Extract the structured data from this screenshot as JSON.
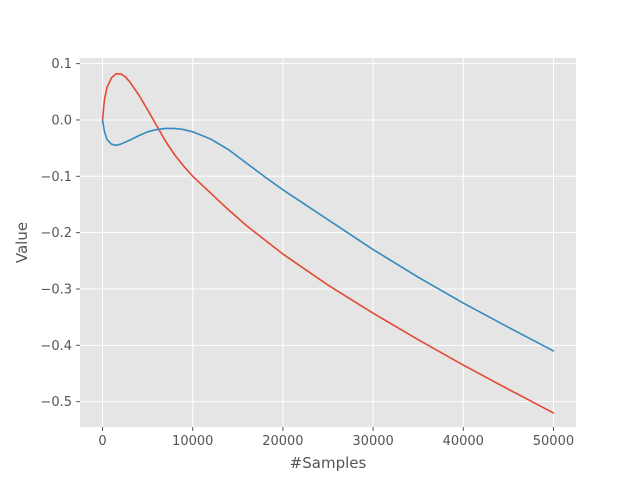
{
  "chart_data": {
    "type": "line",
    "title": "",
    "xlabel": "#Samples",
    "ylabel": "Value",
    "xlim": [
      -2500,
      52500
    ],
    "ylim": [
      -0.545,
      0.11
    ],
    "x_ticks": [
      0,
      10000,
      20000,
      30000,
      40000,
      50000
    ],
    "x_tick_labels": [
      "0",
      "10000",
      "20000",
      "30000",
      "40000",
      "50000"
    ],
    "y_ticks": [
      0.1,
      0.0,
      -0.1,
      -0.2,
      -0.3,
      -0.4,
      -0.5
    ],
    "y_tick_labels": [
      "0.1",
      "0.0",
      "−0.1",
      "−0.2",
      "−0.3",
      "−0.4",
      "−0.5"
    ],
    "grid": true,
    "style": "ggplot",
    "colors": {
      "plot_background": "#e5e5e5",
      "grid": "#ffffff",
      "tick_label": "#555555",
      "axis_label": "#555555"
    },
    "series": [
      {
        "color": "#e24a33",
        "x": [
          0,
          200,
          500,
          1000,
          1500,
          2000,
          2500,
          3000,
          4000,
          5000,
          6000,
          7000,
          8000,
          9000,
          10000,
          12000,
          14000,
          16000,
          18000,
          20000,
          25000,
          30000,
          35000,
          40000,
          45000,
          50000
        ],
        "y": [
          0.0,
          0.035,
          0.058,
          0.075,
          0.082,
          0.082,
          0.077,
          0.068,
          0.045,
          0.018,
          -0.01,
          -0.038,
          -0.062,
          -0.082,
          -0.1,
          -0.13,
          -0.16,
          -0.188,
          -0.213,
          -0.238,
          -0.293,
          -0.343,
          -0.39,
          -0.435,
          -0.478,
          -0.52
        ]
      },
      {
        "color": "#348abd",
        "x": [
          0,
          200,
          500,
          1000,
          1500,
          2000,
          3000,
          4000,
          5000,
          6000,
          7000,
          8000,
          9000,
          10000,
          12000,
          14000,
          16000,
          18000,
          20000,
          25000,
          30000,
          35000,
          40000,
          45000,
          50000
        ],
        "y": [
          0.0,
          -0.02,
          -0.035,
          -0.043,
          -0.045,
          -0.043,
          -0.036,
          -0.028,
          -0.021,
          -0.017,
          -0.015,
          -0.015,
          -0.017,
          -0.021,
          -0.034,
          -0.053,
          -0.077,
          -0.101,
          -0.124,
          -0.177,
          -0.23,
          -0.279,
          -0.325,
          -0.368,
          -0.41
        ]
      }
    ]
  }
}
